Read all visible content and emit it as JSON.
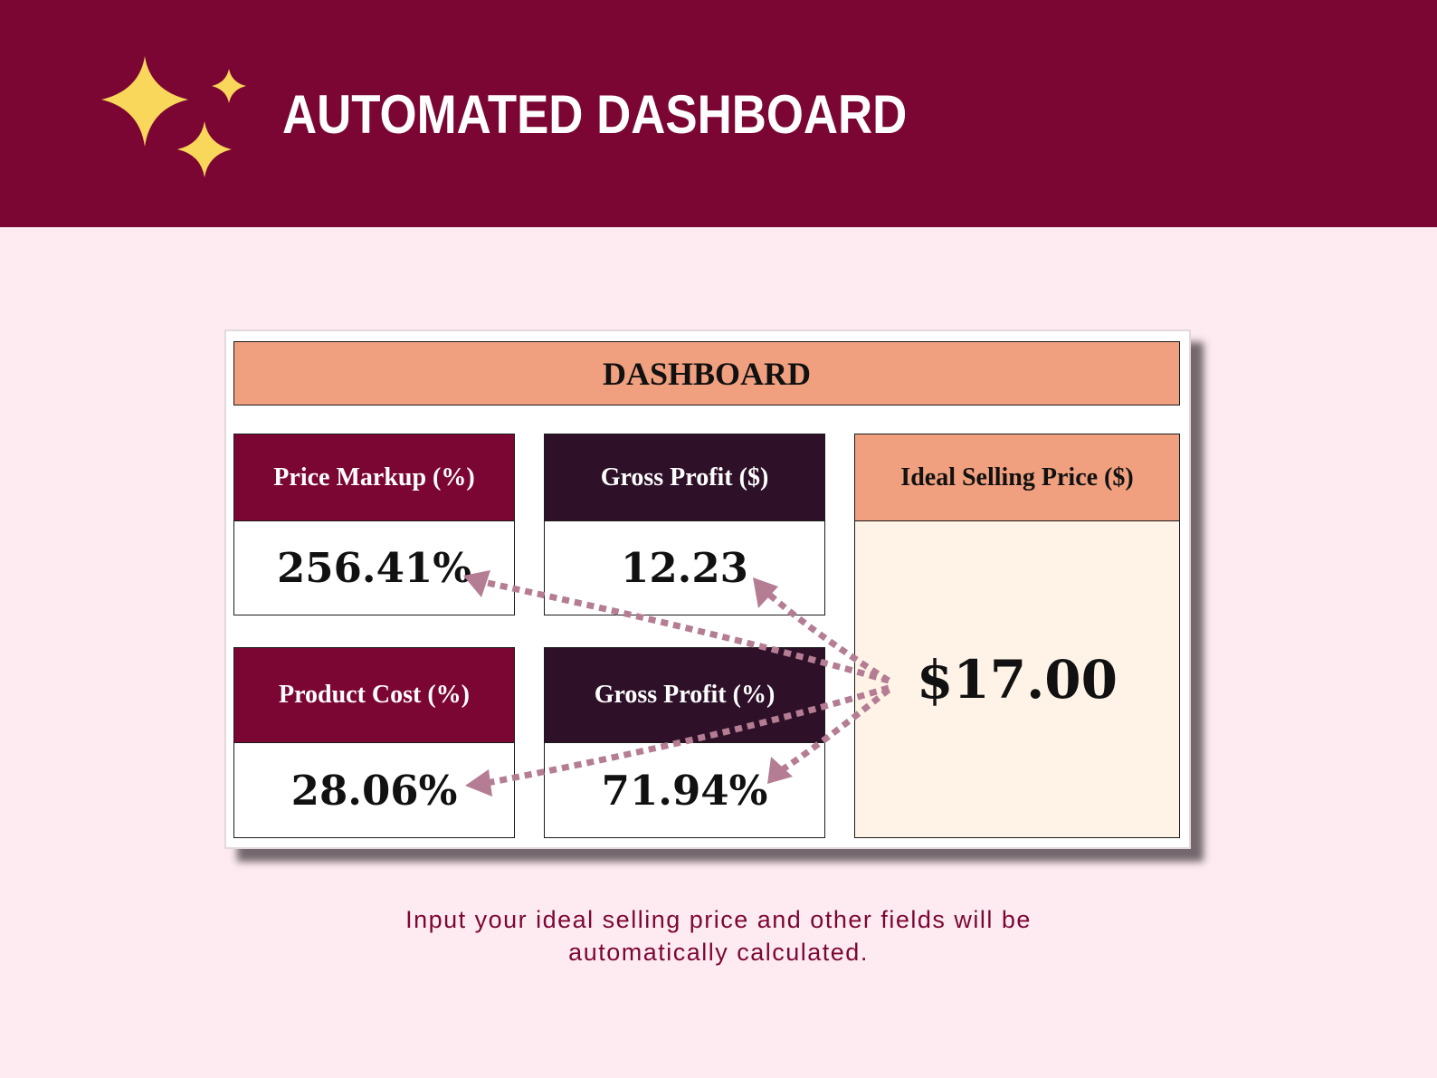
{
  "banner": {
    "title": "AUTOMATED DASHBOARD",
    "icon": "sparkles-icon",
    "icon_color": "#f8d75a",
    "bg_color": "#7c0633"
  },
  "dashboard": {
    "header": "DASHBOARD",
    "tiles": [
      {
        "label": "Price Markup (%)",
        "value": "256.41%"
      },
      {
        "label": "Gross Profit ($)",
        "value": "12.23"
      },
      {
        "label": "Product Cost (%)",
        "value": "28.06%"
      },
      {
        "label": "Gross Profit (%)",
        "value": "71.94%"
      }
    ],
    "ideal": {
      "label": "Ideal Selling Price ($)",
      "value": "$17.00"
    },
    "colors": {
      "header": "#f0a07f",
      "maroon": "#7c0633",
      "plum": "#2e1129",
      "ideal_bg": "#fef3e6",
      "arrow": "#b47d93"
    }
  },
  "caption": {
    "line1": "Input your ideal selling price and other fields will be",
    "line2": "automatically calculated."
  }
}
